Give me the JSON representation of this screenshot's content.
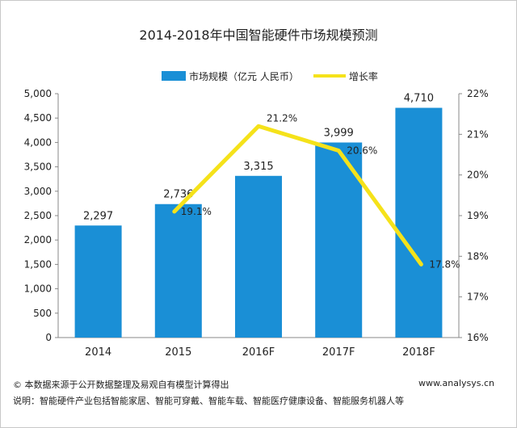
{
  "chart_data": {
    "type": "bar",
    "title": "2014-2018年中国智能硬件市场规模预测",
    "categories": [
      "2014",
      "2015",
      "2016F",
      "2017F",
      "2018F"
    ],
    "series": [
      {
        "name": "市场规模（亿元 人民币）",
        "type": "bar",
        "axis": "left",
        "values": [
          2297,
          2736,
          3315,
          3999,
          4710
        ],
        "labels": [
          "2,297",
          "2,736",
          "3,315",
          "3,999",
          "4,710"
        ]
      },
      {
        "name": "增长率",
        "type": "line",
        "axis": "right",
        "values": [
          null,
          19.1,
          21.2,
          20.6,
          17.8
        ],
        "labels": [
          "",
          "19.1%",
          "21.2%",
          "20.6%",
          "17.8%"
        ]
      }
    ],
    "y_left": {
      "min": 0,
      "max": 5000,
      "step": 500,
      "ticks": [
        "0",
        "500",
        "1,000",
        "1,500",
        "2,000",
        "2,500",
        "3,000",
        "3,500",
        "4,000",
        "4,500",
        "5,000"
      ]
    },
    "y_right": {
      "min": 16,
      "max": 22,
      "step": 1,
      "ticks": [
        "16%",
        "17%",
        "18%",
        "19%",
        "20%",
        "21%",
        "22%"
      ]
    },
    "grid": false,
    "legend": "top"
  },
  "colors": {
    "bar": "#1a8fd6",
    "line": "#f5e21a"
  },
  "footer": {
    "source": "© 本数据来源于公开数据整理及易观自有模型计算得出",
    "site": "www.analysys.cn",
    "note": "说明：智能硬件产业包括智能家居、智能可穿戴、智能车载、智能医疗健康设备、智能服务机器人等"
  }
}
